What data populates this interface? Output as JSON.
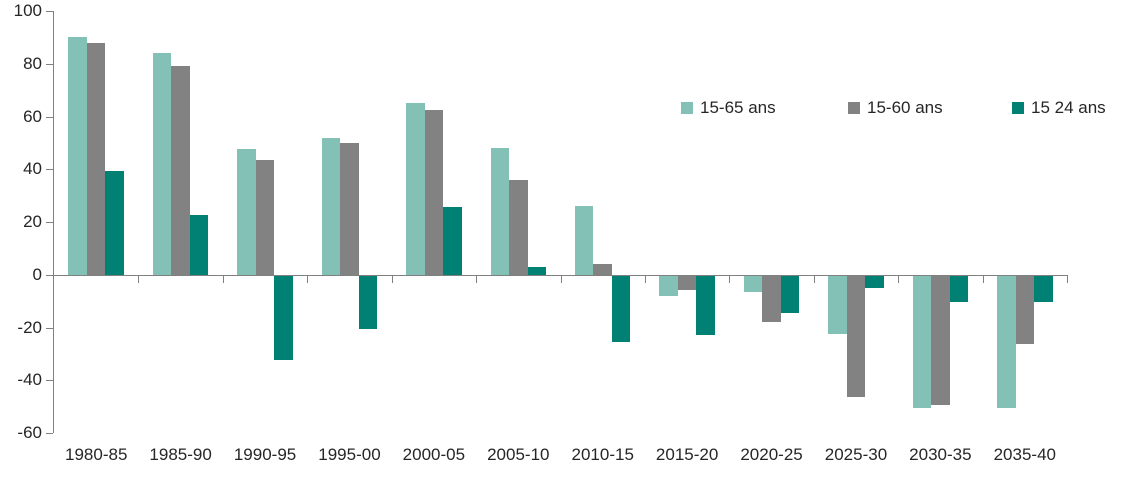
{
  "chart_data": {
    "type": "bar",
    "title": "",
    "xlabel": "",
    "ylabel": "",
    "categories": [
      "1980-85",
      "1985-90",
      "1990-95",
      "1995-00",
      "2000-05",
      "2005-10",
      "2010-15",
      "2015-20",
      "2020-25",
      "2025-30",
      "2030-35",
      "2035-40"
    ],
    "series": [
      {
        "name": "15-65 ans",
        "color": "#83C0B5",
        "values": [
          90,
          84,
          47.5,
          52,
          65,
          48,
          26,
          -7.5,
          -6,
          -22,
          -50,
          -50
        ]
      },
      {
        "name": "15-60 ans",
        "color": "#828282",
        "values": [
          88,
          79,
          43.5,
          50,
          62.5,
          36,
          4,
          -5.5,
          -17.5,
          -46,
          -49,
          -26
        ]
      },
      {
        "name": "15 24 ans",
        "color": "#008173",
        "values": [
          39.5,
          22.5,
          -32,
          -20,
          25.5,
          3,
          -25,
          -22.5,
          -14,
          -4.5,
          -10,
          -10
        ]
      }
    ],
    "yticks": [
      100,
      80,
      60,
      40,
      20,
      0,
      -20,
      -40,
      -60
    ],
    "ylim": [
      -60,
      100
    ],
    "grid": "off",
    "legend_position": "top-right-inside",
    "axis_color": "#808080",
    "text_color": "#262626",
    "background": "#ffffff"
  }
}
